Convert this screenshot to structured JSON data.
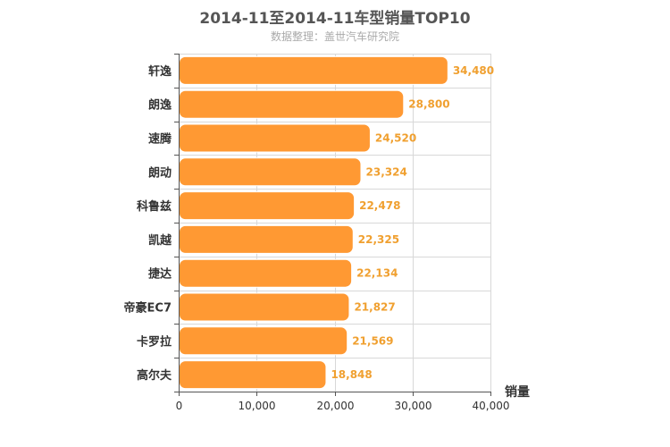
{
  "chart_data": {
    "type": "bar",
    "orientation": "horizontal",
    "title": "2014-11至2014-11车型销量TOP10",
    "subtitle": "数据整理：盖世汽车研究院",
    "xlabel": "销量",
    "ylabel": "",
    "categories": [
      "轩逸",
      "朗逸",
      "速腾",
      "朗动",
      "科鲁兹",
      "凯越",
      "捷达",
      "帝豪EC7",
      "卡罗拉",
      "高尔夫"
    ],
    "values": [
      34480,
      28800,
      24520,
      23324,
      22478,
      22325,
      22134,
      21827,
      21569,
      18848
    ],
    "value_labels": [
      "34,480",
      "28,800",
      "24,520",
      "23,324",
      "22,478",
      "22,325",
      "22,134",
      "21,827",
      "21,569",
      "18,848"
    ],
    "xlim": [
      0,
      40000
    ],
    "xticks": [
      0,
      10000,
      20000,
      30000,
      40000
    ],
    "xtick_labels": [
      "0",
      "10,000",
      "20,000",
      "30,000",
      "40,000"
    ],
    "grid": true,
    "legend": "none",
    "colors": {
      "bar": "#ff9933",
      "bar_stroke": "#ffffff",
      "value_label": "#f0a030",
      "grid": "#d8d8d8",
      "axis": "#555555",
      "category_label": "#333333"
    }
  }
}
